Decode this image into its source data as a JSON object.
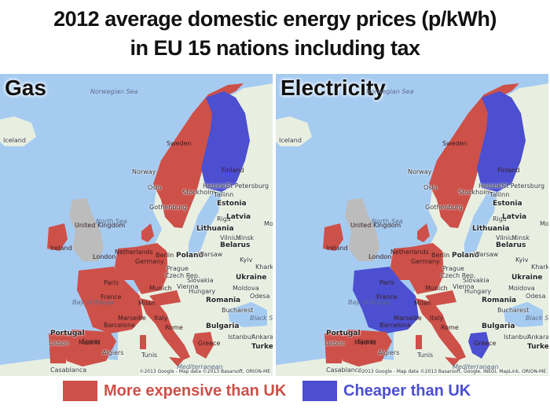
{
  "title_line1": "2012 average domestic energy prices (p/kWh)",
  "title_line2": "in EU 15 nations including tax",
  "colors": {
    "expensive": "#cd5049",
    "cheaper": "#4b4fd0",
    "uk": "#bcbcbc",
    "land": "#e8efe1",
    "sea": "#a6cbf1"
  },
  "panels": [
    {
      "title": "Gas",
      "france": "expensive",
      "finland": "cheaper",
      "greece": "expensive",
      "credit": "©2013 Google - Map data ©2013 Basarsoft, ORION-ME"
    },
    {
      "title": "Electricity",
      "france": "cheaper",
      "finland": "cheaper",
      "greece": "cheaper",
      "credit": "©2013 Google - Map data ©2013 Basarsoft, Google, INEGI, MapLink, ORION-ME"
    }
  ],
  "map_labels": {
    "iceland": "Iceland",
    "norwegian_sea": "Norwegian Sea",
    "sweden": "Sweden",
    "finland": "Finland",
    "norway": "Norway",
    "oslo": "Oslo",
    "stockholm": "Stockholm",
    "helsinki": "Helsinki",
    "st_petersburg": "St Petersburg",
    "tallinn": "Tallinn",
    "estonia": "Estonia",
    "gothenburg": "Gothenburg",
    "riga": "Riga",
    "latvia": "Latvia",
    "north_sea": "North Sea",
    "lithuania": "Lithuania",
    "vilnius": "Vilnius",
    "minsk": "Minsk",
    "belarus": "Belarus",
    "united_kingdom": "United Kingdom",
    "ireland": "Ireland",
    "london": "London",
    "netherlands": "Netherlands",
    "germany": "Germany",
    "poland": "Poland",
    "warsaw": "Warsaw",
    "berlin": "Berlin",
    "prague": "Prague",
    "kyiv": "Kyiv",
    "czech_rep": "Czech Rep.",
    "ukraine": "Ukraine",
    "kharkiv": "Kharkiv",
    "slovakia": "Slovakia",
    "paris": "Paris",
    "munich": "Munich",
    "vienna": "Vienna",
    "hungary": "Hungary",
    "moldova": "Moldova",
    "france": "France",
    "bay_of_biscay": "Bay of Biscay",
    "milan": "Milan",
    "romania": "Romania",
    "odesa": "Odesa",
    "bucharest": "Bucharest",
    "black_sea": "Black Sea",
    "italy": "Italy",
    "marseille": "Marseille",
    "bulgaria": "Bulgaria",
    "rome": "Rome",
    "portugal": "Portugal",
    "madrid": "Madrid",
    "spain": "Spain",
    "barcelona": "Barcelona",
    "lisbon": "Lisbon",
    "istanbul": "Istanbul",
    "ankara": "Ankara",
    "turkey": "Turkey",
    "greece": "Greece",
    "tunis": "Tunis",
    "algiers": "Algiers",
    "casablanca": "Casablanca",
    "mediterranean": "Mediterranean",
    "minsk_short": "Minsk",
    "mosc": "Mosc"
  },
  "legend": {
    "expensive_label": "More expensive than UK",
    "cheaper_label": "Cheaper than UK"
  }
}
